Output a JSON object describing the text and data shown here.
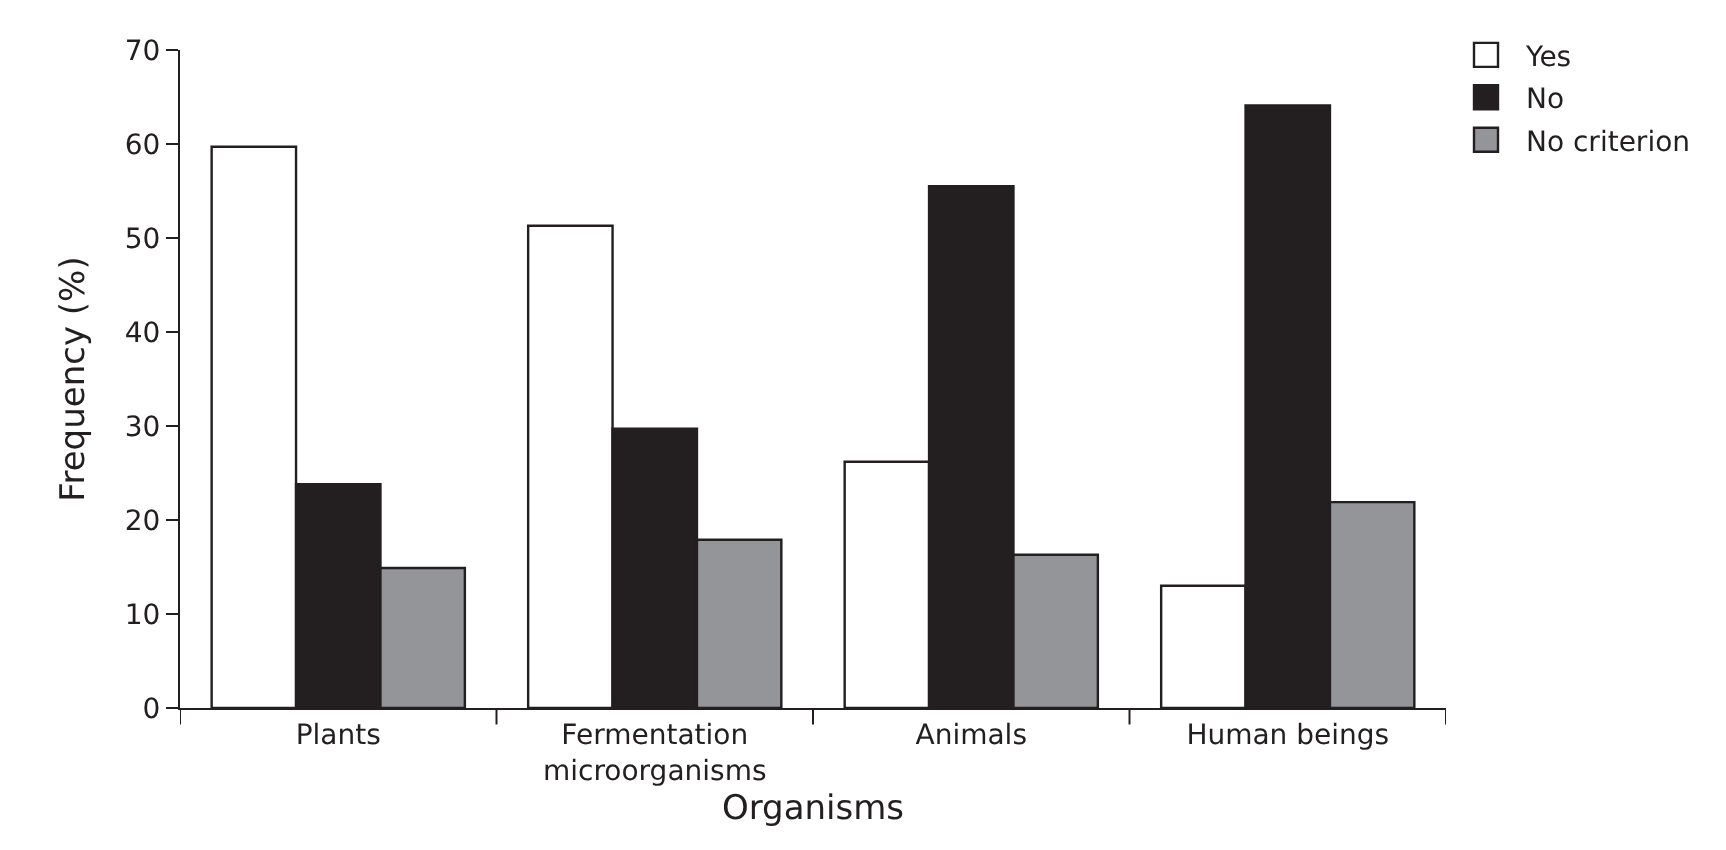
{
  "chart_data": {
    "type": "bar",
    "xlabel": "Organisms",
    "ylabel": "Frequency (%)",
    "categories": [
      "Plants",
      "Fermentation microorganisms",
      "Animals",
      "Human beings"
    ],
    "series": [
      {
        "name": "Yes",
        "color": "#ffffff",
        "values": [
          59.7,
          51.3,
          26.2,
          13.0
        ]
      },
      {
        "name": "No",
        "color": "#231f20",
        "values": [
          23.8,
          29.7,
          55.5,
          64.1
        ]
      },
      {
        "name": "No criterion",
        "color": "#939598",
        "values": [
          14.9,
          17.9,
          16.3,
          21.9
        ]
      }
    ],
    "ylim": [
      0,
      70
    ],
    "yticks": [
      0,
      10,
      20,
      30,
      40,
      50,
      60,
      70
    ],
    "legend": "top right"
  }
}
